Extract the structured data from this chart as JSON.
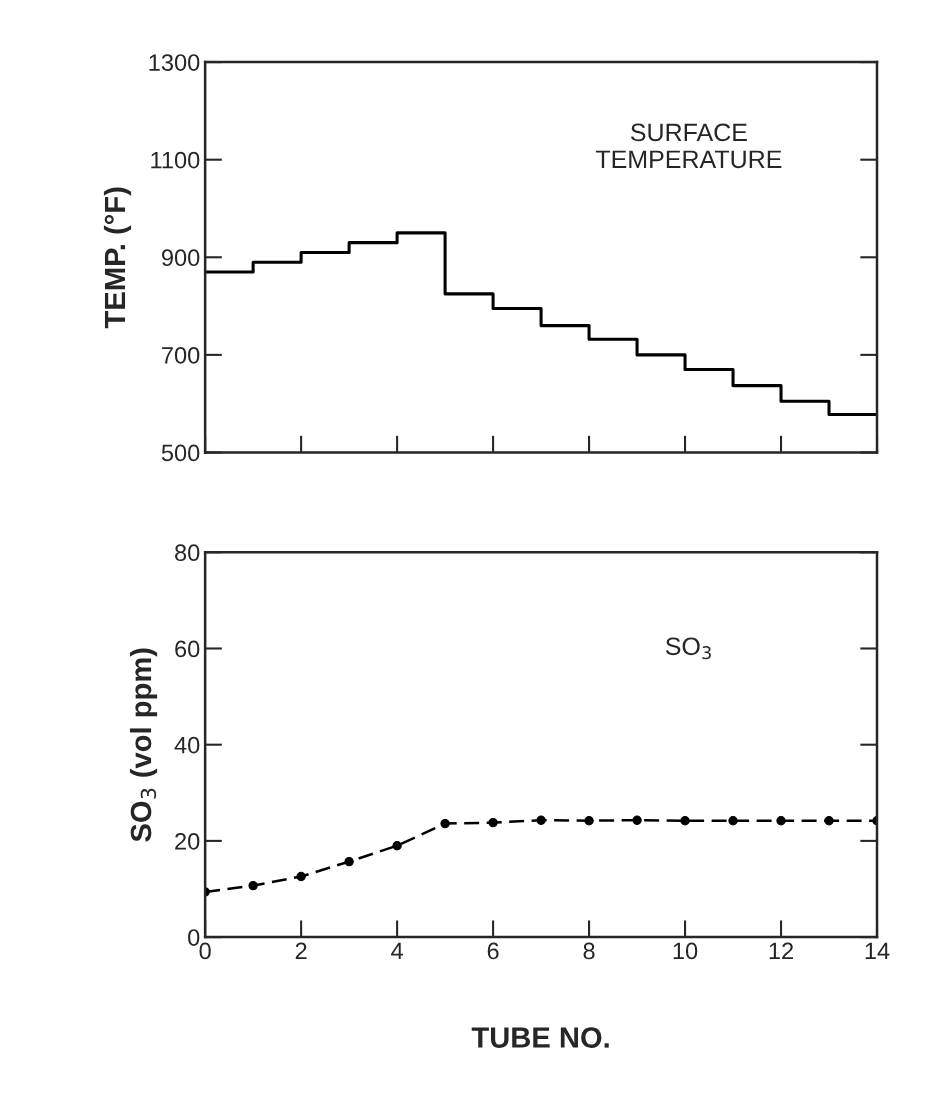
{
  "chart_data": [
    {
      "type": "step",
      "ylabel": "TEMP. (°F)",
      "annotations": [
        "SURFACE\nTEMPERATURE"
      ],
      "x": [
        0,
        1,
        2,
        3,
        4,
        5,
        6,
        7,
        8,
        9,
        10,
        11,
        12,
        13,
        14
      ],
      "values": [
        870,
        890,
        910,
        930,
        950,
        825,
        795,
        760,
        732,
        700,
        670,
        637,
        605,
        578,
        578
      ],
      "color": "#000000",
      "xlim": [
        0,
        14
      ],
      "xticks": [
        0,
        2,
        4,
        6,
        8,
        10,
        12,
        14
      ],
      "ylim": [
        500,
        1300
      ],
      "yticks": [
        500,
        700,
        900,
        1100,
        1300
      ],
      "tick_labels": "y",
      "grid": false,
      "legend": false
    },
    {
      "type": "line",
      "xlabel": "TUBE NO.",
      "ylabel": "SO$_{3}$ (vol ppm)",
      "annotations": [
        "SO$_{3}$"
      ],
      "x": [
        0,
        1,
        2,
        3,
        4,
        5,
        6,
        7,
        8,
        9,
        10,
        11,
        12,
        13,
        14
      ],
      "values": [
        9.4,
        10.7,
        12.6,
        15.7,
        19,
        23.6,
        23.8,
        24.3,
        24.2,
        24.3,
        24.2,
        24.2,
        24.2,
        24.2,
        24.2
      ],
      "color": "#000000",
      "marker": "circle",
      "line_style": "dashed",
      "xlim": [
        0,
        14
      ],
      "xticks": [
        0,
        2,
        4,
        6,
        8,
        10,
        12,
        14
      ],
      "ylim": [
        0,
        80
      ],
      "yticks": [
        0,
        20,
        40,
        60,
        80
      ],
      "grid": false,
      "legend": false
    }
  ]
}
